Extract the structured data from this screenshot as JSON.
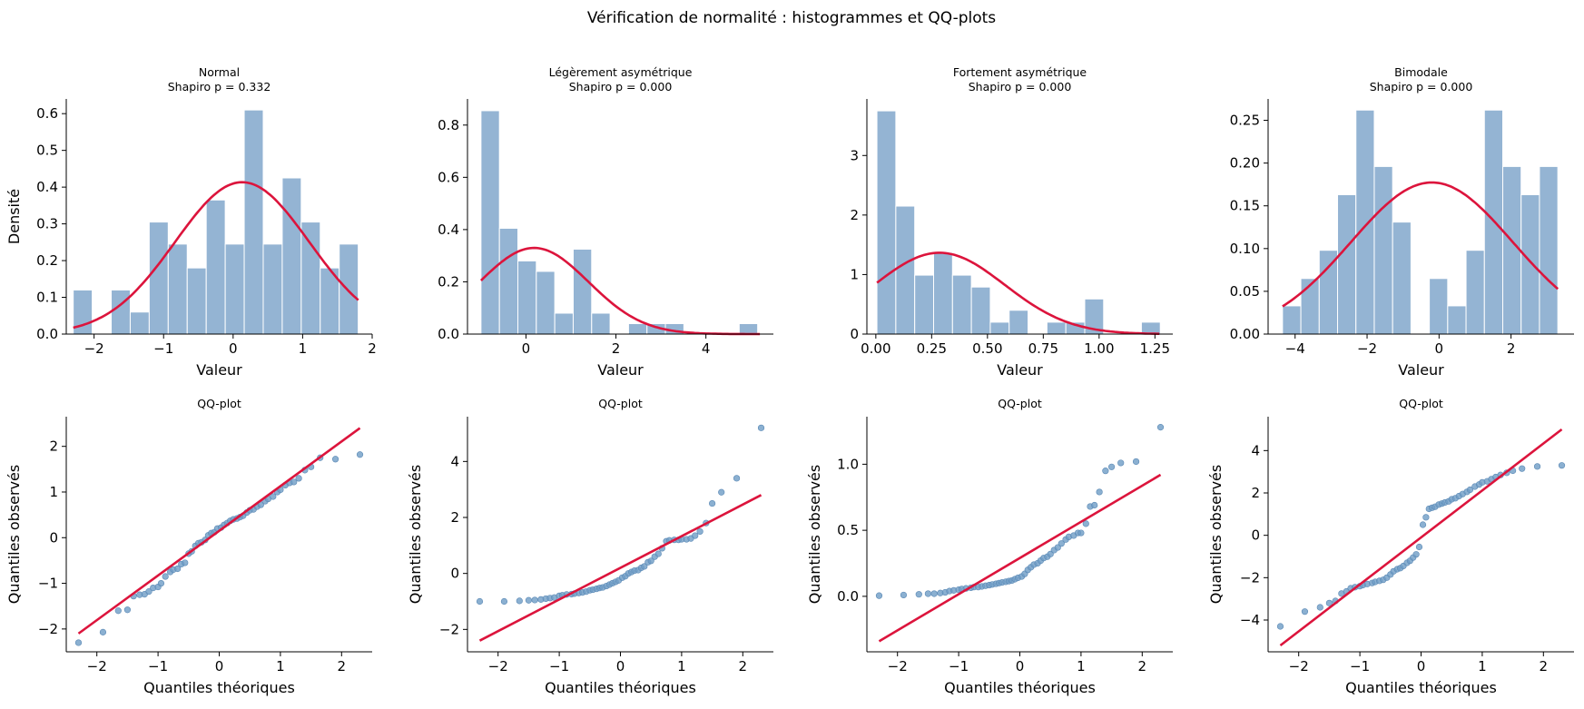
{
  "colors": {
    "bar": "#94b4d3",
    "curve": "#dc143c",
    "point": "#6e9cc6"
  },
  "chart_data": {
    "title": "Vérification de normalité : histogrammes et QQ-plots",
    "panels": [
      {
        "type": "bar",
        "title": "Normal",
        "subtitle": "Shapiro p = 0.332",
        "xlabel": "Valeur",
        "ylabel": "Densité",
        "xlim": [
          -2.4,
          2.0
        ],
        "ylim": [
          0,
          0.64
        ],
        "xticks": [
          -2,
          -1,
          0,
          1,
          2
        ],
        "yticks": [
          0.0,
          0.1,
          0.2,
          0.3,
          0.4,
          0.5,
          0.6
        ],
        "yticklabels": [
          "0.0",
          "0.1",
          "0.2",
          "0.3",
          "0.4",
          "0.5",
          "0.6"
        ],
        "bin_start": -2.3,
        "bin_width": 0.2733,
        "values": [
          0.12,
          0.0,
          0.12,
          0.06,
          0.305,
          0.245,
          0.18,
          0.365,
          0.245,
          0.61,
          0.245,
          0.425,
          0.305,
          0.18,
          0.245
        ],
        "curve": {
          "mean": 0.13,
          "sd": 0.965,
          "from": -2.3,
          "to": 1.8
        }
      },
      {
        "type": "bar",
        "title": "Légèrement asymétrique",
        "subtitle": "Shapiro p = 0.000",
        "xlabel": "Valeur",
        "ylabel": "",
        "xlim": [
          -1.3,
          5.5
        ],
        "ylim": [
          0,
          0.9
        ],
        "xticks": [
          0,
          2,
          4
        ],
        "yticks": [
          0.0,
          0.2,
          0.4,
          0.6,
          0.8
        ],
        "yticklabels": [
          "0.0",
          "0.2",
          "0.4",
          "0.6",
          "0.8"
        ],
        "bin_start": -1.0,
        "bin_width": 0.41,
        "values": [
          0.855,
          0.405,
          0.28,
          0.24,
          0.08,
          0.325,
          0.08,
          0.0,
          0.04,
          0.04,
          0.04,
          0.0,
          0.0,
          0.0,
          0.04
        ],
        "curve": {
          "mean": 0.18,
          "sd": 1.21,
          "from": -1.0,
          "to": 5.2
        }
      },
      {
        "type": "bar",
        "title": "Fortement asymétrique",
        "subtitle": "Shapiro p = 0.000",
        "xlabel": "Valeur",
        "ylabel": "",
        "xlim": [
          -0.04,
          1.33
        ],
        "ylim": [
          0,
          3.95
        ],
        "xticks": [
          0.0,
          0.25,
          0.5,
          0.75,
          1.0,
          1.25
        ],
        "yticks": [
          0,
          1,
          2,
          3
        ],
        "xticklabels": [
          "0.00",
          "0.25",
          "0.50",
          "0.75",
          "1.00",
          "1.25"
        ],
        "yticklabels": [
          "0",
          "1",
          "2",
          "3"
        ],
        "bin_start": 0.005,
        "bin_width": 0.0846,
        "values": [
          3.75,
          2.15,
          0.99,
          1.37,
          0.99,
          0.79,
          0.2,
          0.4,
          0.0,
          0.2,
          0.2,
          0.59,
          0.0,
          0.0,
          0.2
        ],
        "curve": {
          "mean": 0.285,
          "sd": 0.292,
          "from": 0.005,
          "to": 1.27
        }
      },
      {
        "type": "bar",
        "title": "Bimodale",
        "subtitle": "Shapiro p = 0.000",
        "xlabel": "Valeur",
        "ylabel": "",
        "xlim": [
          -4.75,
          3.75
        ],
        "ylim": [
          0,
          0.275
        ],
        "xticks": [
          -4,
          -2,
          0,
          2
        ],
        "yticks": [
          0.0,
          0.05,
          0.1,
          0.15,
          0.2,
          0.25
        ],
        "yticklabels": [
          "0.00",
          "0.05",
          "0.10",
          "0.15",
          "0.20",
          "0.25"
        ],
        "bin_start": -4.35,
        "bin_width": 0.51,
        "values": [
          0.033,
          0.065,
          0.098,
          0.163,
          0.262,
          0.196,
          0.131,
          0.0,
          0.065,
          0.033,
          0.098,
          0.262,
          0.196,
          0.163,
          0.196
        ],
        "curve": {
          "mean": -0.2,
          "sd": 2.25,
          "from": -4.35,
          "to": 3.3
        }
      },
      {
        "type": "scatter",
        "title": "QQ-plot",
        "xlabel": "Quantiles théoriques",
        "ylabel": "Quantiles observés",
        "xlim": [
          -2.5,
          2.5
        ],
        "ylim": [
          -2.5,
          2.65
        ],
        "xticks": [
          -2,
          -1,
          0,
          1,
          2
        ],
        "yticks": [
          -2,
          -1,
          0,
          1,
          2
        ],
        "line": {
          "x": [
            -2.3,
            2.3
          ],
          "y": [
            -2.1,
            2.4
          ]
        },
        "points_x": [
          -2.3,
          -1.9,
          -1.65,
          -1.5,
          -1.4,
          -1.3,
          -1.22,
          -1.15,
          -1.08,
          -1.0,
          -0.95,
          -0.88,
          -0.8,
          -0.75,
          -0.68,
          -0.62,
          -0.56,
          -0.5,
          -0.45,
          -0.39,
          -0.34,
          -0.29,
          -0.23,
          -0.18,
          -0.13,
          -0.08,
          -0.03,
          0.03,
          0.08,
          0.13,
          0.18,
          0.23,
          0.29,
          0.34,
          0.39,
          0.45,
          0.5,
          0.56,
          0.62,
          0.68,
          0.75,
          0.8,
          0.88,
          0.95,
          1.0,
          1.08,
          1.15,
          1.22,
          1.3,
          1.4,
          1.5,
          1.65,
          1.9,
          2.3
        ],
        "points_y": [
          -2.3,
          -2.07,
          -1.6,
          -1.58,
          -1.28,
          -1.25,
          -1.24,
          -1.18,
          -1.1,
          -1.08,
          -1.0,
          -0.85,
          -0.75,
          -0.7,
          -0.68,
          -0.58,
          -0.55,
          -0.35,
          -0.3,
          -0.18,
          -0.12,
          -0.1,
          -0.05,
          0.05,
          0.1,
          0.12,
          0.2,
          0.22,
          0.28,
          0.32,
          0.37,
          0.4,
          0.42,
          0.45,
          0.48,
          0.55,
          0.6,
          0.62,
          0.68,
          0.72,
          0.8,
          0.85,
          0.9,
          1.0,
          1.05,
          1.15,
          1.2,
          1.22,
          1.3,
          1.48,
          1.55,
          1.75,
          1.72,
          1.82
        ]
      },
      {
        "type": "scatter",
        "title": "QQ-plot",
        "xlabel": "Quantiles théoriques",
        "ylabel": "Quantiles observés",
        "xlim": [
          -2.5,
          2.5
        ],
        "ylim": [
          -2.8,
          5.6
        ],
        "xticks": [
          -2,
          -1,
          0,
          1,
          2
        ],
        "yticks": [
          -2,
          0,
          2,
          4
        ],
        "line": {
          "x": [
            -2.3,
            2.3
          ],
          "y": [
            -2.4,
            2.8
          ]
        },
        "points_x": [
          -2.3,
          -1.9,
          -1.65,
          -1.5,
          -1.4,
          -1.3,
          -1.22,
          -1.15,
          -1.08,
          -1.0,
          -0.95,
          -0.88,
          -0.8,
          -0.75,
          -0.68,
          -0.62,
          -0.56,
          -0.5,
          -0.45,
          -0.39,
          -0.34,
          -0.29,
          -0.23,
          -0.18,
          -0.13,
          -0.08,
          -0.03,
          0.03,
          0.08,
          0.13,
          0.18,
          0.23,
          0.29,
          0.34,
          0.39,
          0.45,
          0.5,
          0.56,
          0.62,
          0.68,
          0.75,
          0.8,
          0.88,
          0.95,
          1.0,
          1.08,
          1.15,
          1.22,
          1.3,
          1.4,
          1.5,
          1.65,
          1.9,
          2.3
        ],
        "points_y": [
          -1.0,
          -1.0,
          -0.98,
          -0.96,
          -0.95,
          -0.93,
          -0.9,
          -0.88,
          -0.86,
          -0.8,
          -0.78,
          -0.75,
          -0.74,
          -0.72,
          -0.7,
          -0.68,
          -0.65,
          -0.6,
          -0.58,
          -0.55,
          -0.52,
          -0.5,
          -0.45,
          -0.4,
          -0.35,
          -0.3,
          -0.25,
          -0.15,
          -0.1,
          0.0,
          0.05,
          0.1,
          0.12,
          0.2,
          0.25,
          0.4,
          0.45,
          0.6,
          0.7,
          0.9,
          1.15,
          1.18,
          1.2,
          1.2,
          1.22,
          1.22,
          1.25,
          1.35,
          1.5,
          1.8,
          2.5,
          2.9,
          3.4,
          5.2
        ]
      },
      {
        "type": "scatter",
        "title": "QQ-plot",
        "xlabel": "Quantiles théoriques",
        "ylabel": "Quantiles observés",
        "xlim": [
          -2.5,
          2.5
        ],
        "ylim": [
          -0.42,
          1.36
        ],
        "xticks": [
          -2,
          -1,
          0,
          1,
          2
        ],
        "yticks": [
          0.0,
          0.5,
          1.0
        ],
        "yticklabels": [
          "0.0",
          "0.5",
          "1.0"
        ],
        "line": {
          "x": [
            -2.3,
            2.3
          ],
          "y": [
            -0.34,
            0.92
          ]
        },
        "points_x": [
          -2.3,
          -1.9,
          -1.65,
          -1.5,
          -1.4,
          -1.3,
          -1.22,
          -1.15,
          -1.08,
          -1.0,
          -0.95,
          -0.88,
          -0.8,
          -0.75,
          -0.68,
          -0.62,
          -0.56,
          -0.5,
          -0.45,
          -0.39,
          -0.34,
          -0.29,
          -0.23,
          -0.18,
          -0.13,
          -0.08,
          -0.03,
          0.03,
          0.08,
          0.13,
          0.18,
          0.23,
          0.29,
          0.34,
          0.39,
          0.45,
          0.5,
          0.56,
          0.62,
          0.68,
          0.75,
          0.8,
          0.88,
          0.95,
          1.0,
          1.08,
          1.15,
          1.22,
          1.3,
          1.4,
          1.5,
          1.65,
          1.9,
          2.3
        ],
        "points_y": [
          0.005,
          0.01,
          0.015,
          0.02,
          0.02,
          0.025,
          0.03,
          0.04,
          0.045,
          0.05,
          0.055,
          0.06,
          0.065,
          0.07,
          0.07,
          0.075,
          0.08,
          0.085,
          0.09,
          0.095,
          0.1,
          0.105,
          0.11,
          0.115,
          0.12,
          0.13,
          0.14,
          0.15,
          0.17,
          0.2,
          0.22,
          0.24,
          0.25,
          0.27,
          0.29,
          0.3,
          0.32,
          0.35,
          0.37,
          0.4,
          0.43,
          0.45,
          0.46,
          0.48,
          0.48,
          0.55,
          0.68,
          0.69,
          0.79,
          0.95,
          0.98,
          1.01,
          1.02,
          1.28
        ]
      },
      {
        "type": "scatter",
        "title": "QQ-plot",
        "xlabel": "Quantiles théoriques",
        "ylabel": "Quantiles observés",
        "xlim": [
          -2.5,
          2.5
        ],
        "ylim": [
          -5.5,
          5.6
        ],
        "xticks": [
          -2,
          -1,
          0,
          1,
          2
        ],
        "yticks": [
          -4,
          -2,
          0,
          2,
          4
        ],
        "line": {
          "x": [
            -2.3,
            2.3
          ],
          "y": [
            -5.2,
            5.0
          ]
        },
        "points_x": [
          -2.3,
          -1.9,
          -1.65,
          -1.5,
          -1.4,
          -1.3,
          -1.22,
          -1.15,
          -1.08,
          -1.0,
          -0.95,
          -0.88,
          -0.8,
          -0.75,
          -0.68,
          -0.62,
          -0.56,
          -0.5,
          -0.45,
          -0.39,
          -0.34,
          -0.29,
          -0.23,
          -0.18,
          -0.13,
          -0.08,
          -0.03,
          0.03,
          0.08,
          0.13,
          0.18,
          0.23,
          0.29,
          0.34,
          0.39,
          0.45,
          0.5,
          0.56,
          0.62,
          0.68,
          0.75,
          0.8,
          0.88,
          0.95,
          1.0,
          1.08,
          1.15,
          1.22,
          1.3,
          1.4,
          1.5,
          1.65,
          1.9,
          2.3
        ],
        "points_y": [
          -4.3,
          -3.6,
          -3.4,
          -3.2,
          -3.1,
          -2.75,
          -2.65,
          -2.5,
          -2.45,
          -2.4,
          -2.35,
          -2.3,
          -2.25,
          -2.2,
          -2.15,
          -2.1,
          -2.0,
          -1.85,
          -1.7,
          -1.6,
          -1.55,
          -1.45,
          -1.3,
          -1.2,
          -1.05,
          -0.9,
          -0.55,
          0.5,
          0.85,
          1.25,
          1.3,
          1.35,
          1.45,
          1.5,
          1.55,
          1.6,
          1.7,
          1.75,
          1.85,
          1.95,
          2.05,
          2.15,
          2.3,
          2.4,
          2.5,
          2.55,
          2.65,
          2.75,
          2.85,
          2.95,
          3.05,
          3.15,
          3.25,
          3.3
        ]
      }
    ]
  }
}
